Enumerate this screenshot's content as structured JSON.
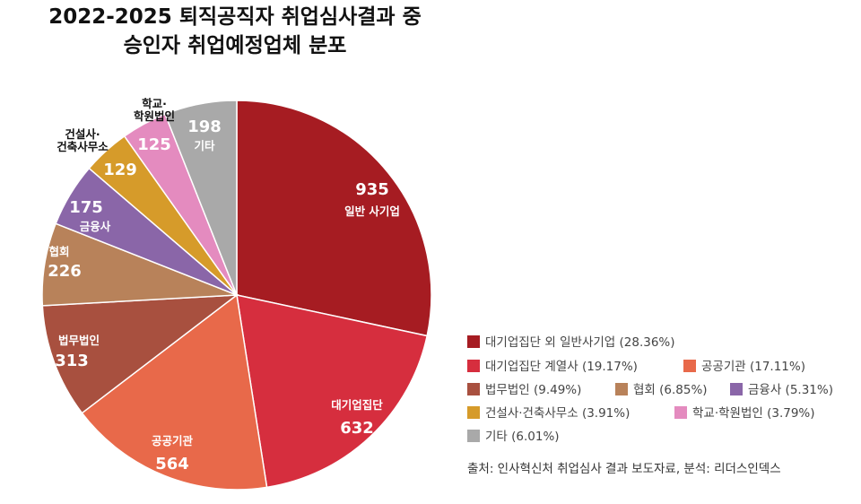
{
  "chart_data": {
    "type": "pie",
    "title": [
      "2022-2025 퇴직공직자 취업심사결과 중",
      "승인자 취업예정업체 분포"
    ],
    "categories": [
      "일반 사기업",
      "대기업집단",
      "공공기관",
      "법무법인",
      "협회",
      "금융사",
      "건설사·\n건축사무소",
      "학교·\n학원법인",
      "기타"
    ],
    "values": [
      935,
      632,
      564,
      313,
      226,
      175,
      129,
      125,
      198
    ],
    "colors": [
      "#a61c22",
      "#d62e3e",
      "#e8694a",
      "#a8503f",
      "#b8825a",
      "#8a66a8",
      "#d69b2a",
      "#e48bbf",
      "#a9a9a9"
    ],
    "legend": [
      "대기업집단 외 일반사기업 (28.36%)",
      "대기업집단 계열사 (19.17%)",
      "공공기관 (17.11%)",
      "법무법인 (9.49%)",
      "협회 (6.85%)",
      "금융사 (5.31%)",
      "건설사·건축사무소 (3.91%)",
      "학교·학원법인 (3.79%)",
      "기타 (6.01%)"
    ],
    "source": "출처: 인사혁신처 취업심사 결과 보도자료, 분석: 리더스인덱스"
  }
}
